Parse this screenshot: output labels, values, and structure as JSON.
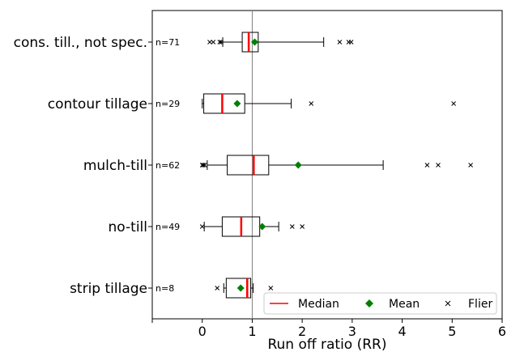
{
  "chart_data": {
    "type": "boxplot",
    "orientation": "horizontal",
    "xlabel": "Run off ratio (RR)",
    "xlim": [
      -1,
      6
    ],
    "x_ticks": [
      0,
      1,
      2,
      3,
      4,
      5,
      6
    ],
    "reference_line_x": 1,
    "grid": false,
    "legend_position": "bottom-right",
    "legend": [
      {
        "label": "Median",
        "marker": "line",
        "color": "#ff0000"
      },
      {
        "label": "Mean",
        "marker": "diamond",
        "color": "#008000"
      },
      {
        "label": "Flier",
        "marker": "x",
        "color": "#000000"
      }
    ],
    "colors": {
      "median": "#ff0000",
      "mean": "#008000",
      "box": "#000000",
      "reference": "#808080"
    },
    "categories": [
      {
        "label": "cons. till., not spec.",
        "n_text": "n=71",
        "whisker_low": 0.41,
        "q1": 0.8,
        "median": 0.93,
        "q3": 1.12,
        "whisker_high": 2.43,
        "mean": 1.05,
        "fliers": [
          0.15,
          0.22,
          0.35,
          0.38,
          2.75,
          2.93,
          2.98
        ]
      },
      {
        "label": "contour tillage",
        "n_text": "n=29",
        "whisker_low": 0.0,
        "q1": 0.03,
        "median": 0.4,
        "q3": 0.85,
        "whisker_high": 1.78,
        "mean": 0.7,
        "fliers": [
          2.18,
          5.03
        ]
      },
      {
        "label": "mulch-till",
        "n_text": "n=62",
        "whisker_low": 0.1,
        "q1": 0.5,
        "median": 1.03,
        "q3": 1.33,
        "whisker_high": 3.62,
        "mean": 1.92,
        "fliers": [
          0.0,
          0.02,
          0.05,
          4.5,
          4.72,
          5.37
        ]
      },
      {
        "label": "no-till",
        "n_text": "n=49",
        "whisker_low": 0.04,
        "q1": 0.4,
        "median": 0.78,
        "q3": 1.15,
        "whisker_high": 1.53,
        "mean": 1.2,
        "fliers": [
          0.0,
          1.8,
          2.0
        ]
      },
      {
        "label": "strip tillage",
        "n_text": "n=8",
        "whisker_low": 0.43,
        "q1": 0.48,
        "median": 0.9,
        "q3": 0.97,
        "whisker_high": 1.02,
        "mean": 0.77,
        "fliers": [
          0.3,
          1.37
        ]
      }
    ]
  }
}
